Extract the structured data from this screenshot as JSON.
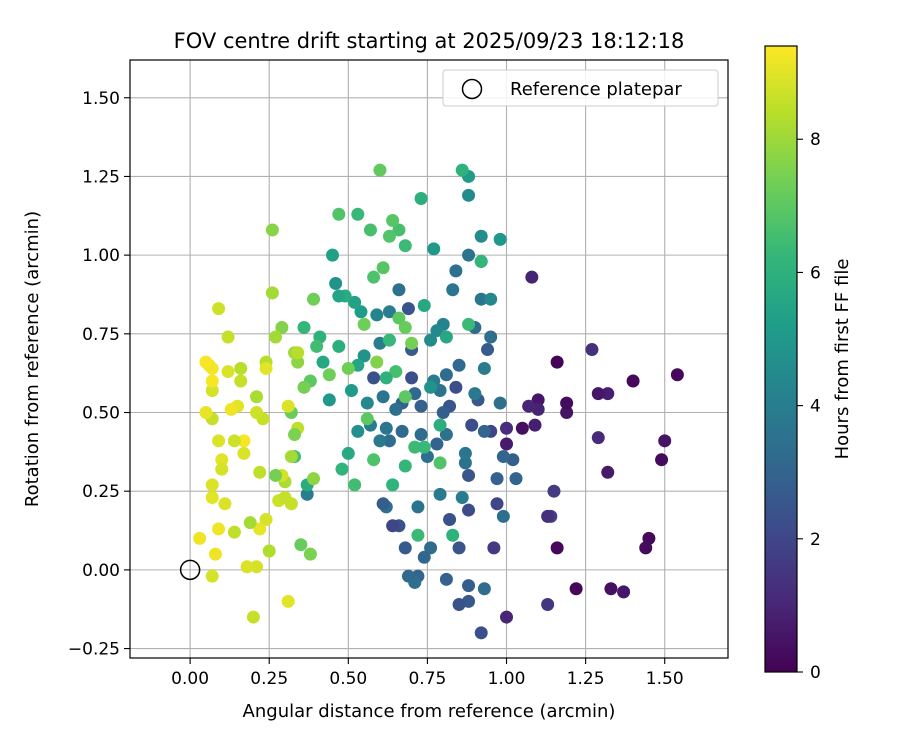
{
  "chart_data": {
    "type": "scatter",
    "title": "FOV centre drift starting at 2025/09/23 18:12:18",
    "xlabel": "Angular distance from reference (arcmin)",
    "ylabel": "Rotation from reference (arcmin)",
    "xlim": [
      -0.19,
      1.7
    ],
    "ylim": [
      -0.28,
      1.62
    ],
    "xticks": [
      "0.00",
      "0.25",
      "0.50",
      "0.75",
      "1.00",
      "1.25",
      "1.50"
    ],
    "yticks": [
      "−0.25",
      "0.00",
      "0.25",
      "0.50",
      "0.75",
      "1.00",
      "1.25",
      "1.50"
    ],
    "grid": true,
    "legend": {
      "position": "top-right",
      "label": "Reference platepar"
    },
    "reference_point": {
      "x": 0.0,
      "y": 0.0
    },
    "colorbar": {
      "label": "Hours from first FF file",
      "range": [
        0,
        9.4
      ],
      "ticks": [
        "0",
        "2",
        "4",
        "6",
        "8"
      ],
      "colormap": "viridis"
    },
    "points": [
      {
        "x": 1.54,
        "y": 0.62,
        "h": 0.2
      },
      {
        "x": 1.5,
        "y": 0.41,
        "h": 0.5
      },
      {
        "x": 1.49,
        "y": 0.35,
        "h": 0.3
      },
      {
        "x": 1.45,
        "y": 0.1,
        "h": 0.2
      },
      {
        "x": 1.44,
        "y": 0.07,
        "h": 0.3
      },
      {
        "x": 1.4,
        "y": 0.6,
        "h": 0.2
      },
      {
        "x": 1.37,
        "y": -0.07,
        "h": 0.6
      },
      {
        "x": 1.33,
        "y": -0.06,
        "h": 0.4
      },
      {
        "x": 1.32,
        "y": 0.56,
        "h": 0.8
      },
      {
        "x": 1.32,
        "y": 0.31,
        "h": 0.7
      },
      {
        "x": 1.29,
        "y": 0.56,
        "h": 0.6
      },
      {
        "x": 1.29,
        "y": 0.42,
        "h": 1.1
      },
      {
        "x": 1.27,
        "y": 0.7,
        "h": 1.3
      },
      {
        "x": 1.22,
        "y": -0.06,
        "h": 0.2
      },
      {
        "x": 1.19,
        "y": 0.5,
        "h": 0.5
      },
      {
        "x": 1.19,
        "y": 0.53,
        "h": 0.3
      },
      {
        "x": 1.16,
        "y": 0.66,
        "h": 0.1
      },
      {
        "x": 1.16,
        "y": 0.07,
        "h": 0.2
      },
      {
        "x": 1.15,
        "y": 0.25,
        "h": 1.6
      },
      {
        "x": 1.14,
        "y": 0.17,
        "h": 1.8
      },
      {
        "x": 1.13,
        "y": -0.11,
        "h": 1.5
      },
      {
        "x": 1.13,
        "y": 0.17,
        "h": 1.3
      },
      {
        "x": 1.1,
        "y": 0.54,
        "h": 0.6
      },
      {
        "x": 1.1,
        "y": 0.51,
        "h": 0.9
      },
      {
        "x": 1.09,
        "y": 0.46,
        "h": 0.8
      },
      {
        "x": 1.08,
        "y": 0.93,
        "h": 0.9
      },
      {
        "x": 1.07,
        "y": 0.52,
        "h": 1.0
      },
      {
        "x": 1.05,
        "y": 0.45,
        "h": 0.4
      },
      {
        "x": 1.03,
        "y": 0.29,
        "h": 3.0
      },
      {
        "x": 1.02,
        "y": 0.35,
        "h": 2.8
      },
      {
        "x": 1.0,
        "y": 0.4,
        "h": 0.7
      },
      {
        "x": 1.0,
        "y": -0.15,
        "h": 1.0
      },
      {
        "x": 1.0,
        "y": 0.45,
        "h": 1.2
      },
      {
        "x": 0.99,
        "y": 0.17,
        "h": 3.4
      },
      {
        "x": 0.99,
        "y": 0.36,
        "h": 3.0
      },
      {
        "x": 0.98,
        "y": 0.53,
        "h": 3.4
      },
      {
        "x": 0.98,
        "y": 1.05,
        "h": 5.0
      },
      {
        "x": 0.97,
        "y": 0.21,
        "h": 2.0
      },
      {
        "x": 0.96,
        "y": 0.07,
        "h": 1.6
      },
      {
        "x": 0.95,
        "y": 0.74,
        "h": 3.4
      },
      {
        "x": 0.95,
        "y": 0.44,
        "h": 1.9
      },
      {
        "x": 0.94,
        "y": 0.7,
        "h": 2.7
      },
      {
        "x": 0.93,
        "y": 0.44,
        "h": 3.0
      },
      {
        "x": 0.93,
        "y": -0.06,
        "h": 3.3
      },
      {
        "x": 0.92,
        "y": -0.2,
        "h": 2.3
      },
      {
        "x": 0.92,
        "y": 1.06,
        "h": 4.6
      },
      {
        "x": 0.92,
        "y": 0.98,
        "h": 4.0
      },
      {
        "x": 0.92,
        "y": 0.86,
        "h": 3.7
      },
      {
        "x": 0.91,
        "y": 0.54,
        "h": 2.6
      },
      {
        "x": 0.9,
        "y": 0.77,
        "h": 3.4
      },
      {
        "x": 0.89,
        "y": 0.46,
        "h": 2.2
      },
      {
        "x": 0.88,
        "y": 0.3,
        "h": 2.5
      },
      {
        "x": 0.88,
        "y": 0.19,
        "h": 2.2
      },
      {
        "x": 0.88,
        "y": -0.05,
        "h": 2.8
      },
      {
        "x": 0.88,
        "y": -0.1,
        "h": 2.6
      },
      {
        "x": 0.88,
        "y": 1.0,
        "h": 3.6
      },
      {
        "x": 0.88,
        "y": 1.25,
        "h": 5.1
      },
      {
        "x": 0.88,
        "y": 1.19,
        "h": 4.5
      },
      {
        "x": 0.87,
        "y": 0.34,
        "h": 3.5
      },
      {
        "x": 0.87,
        "y": 0.37,
        "h": 3.7
      },
      {
        "x": 0.86,
        "y": 0.23,
        "h": 3.9
      },
      {
        "x": 0.85,
        "y": -0.11,
        "h": 2.4
      },
      {
        "x": 0.85,
        "y": 0.07,
        "h": 2.5
      },
      {
        "x": 0.85,
        "y": 0.65,
        "h": 3.2
      },
      {
        "x": 0.84,
        "y": 0.58,
        "h": 2.3
      },
      {
        "x": 0.84,
        "y": 0.95,
        "h": 3.5
      },
      {
        "x": 0.83,
        "y": 0.89,
        "h": 3.7
      },
      {
        "x": 0.82,
        "y": 0.52,
        "h": 2.5
      },
      {
        "x": 0.82,
        "y": 0.16,
        "h": 2.4
      },
      {
        "x": 0.81,
        "y": 0.43,
        "h": 3.5
      },
      {
        "x": 0.81,
        "y": -0.03,
        "h": 2.9
      },
      {
        "x": 0.81,
        "y": 0.62,
        "h": 3.3
      },
      {
        "x": 0.8,
        "y": 0.5,
        "h": 2.8
      },
      {
        "x": 0.8,
        "y": 0.78,
        "h": 4.2
      },
      {
        "x": 0.79,
        "y": 0.57,
        "h": 3.6
      },
      {
        "x": 0.79,
        "y": 0.24,
        "h": 3.8
      },
      {
        "x": 0.78,
        "y": 0.4,
        "h": 3.0
      },
      {
        "x": 0.78,
        "y": 0.76,
        "h": 4.4
      },
      {
        "x": 0.77,
        "y": 1.02,
        "h": 5.0
      },
      {
        "x": 0.77,
        "y": 0.6,
        "h": 3.9
      },
      {
        "x": 0.76,
        "y": 0.73,
        "h": 4.5
      },
      {
        "x": 0.76,
        "y": 0.07,
        "h": 3.3
      },
      {
        "x": 0.75,
        "y": 0.36,
        "h": 3.4
      },
      {
        "x": 0.74,
        "y": 0.04,
        "h": 3.1
      },
      {
        "x": 0.73,
        "y": 0.43,
        "h": 3.3
      },
      {
        "x": 0.73,
        "y": 0.52,
        "h": 2.9
      },
      {
        "x": 0.72,
        "y": 0.2,
        "h": 3.6
      },
      {
        "x": 0.72,
        "y": -0.02,
        "h": 3.0
      },
      {
        "x": 0.71,
        "y": -0.04,
        "h": 3.4
      },
      {
        "x": 0.71,
        "y": 0.56,
        "h": 3.2
      },
      {
        "x": 0.7,
        "y": 0.7,
        "h": 2.7
      },
      {
        "x": 0.7,
        "y": 0.61,
        "h": 2.3
      },
      {
        "x": 0.69,
        "y": 0.83,
        "h": 2.5
      },
      {
        "x": 0.69,
        "y": -0.02,
        "h": 3.2
      },
      {
        "x": 0.68,
        "y": 0.07,
        "h": 2.7
      },
      {
        "x": 0.67,
        "y": 0.44,
        "h": 3.2
      },
      {
        "x": 0.67,
        "y": 0.53,
        "h": 2.9
      },
      {
        "x": 0.66,
        "y": 0.89,
        "h": 3.5
      },
      {
        "x": 0.66,
        "y": 0.14,
        "h": 2.4
      },
      {
        "x": 0.65,
        "y": 0.51,
        "h": 3.4
      },
      {
        "x": 0.64,
        "y": 0.14,
        "h": 2.0
      },
      {
        "x": 0.63,
        "y": 0.82,
        "h": 4.0
      },
      {
        "x": 0.63,
        "y": 0.41,
        "h": 3.3
      },
      {
        "x": 0.62,
        "y": 0.45,
        "h": 3.7
      },
      {
        "x": 0.62,
        "y": 0.2,
        "h": 3.5
      },
      {
        "x": 0.61,
        "y": 0.21,
        "h": 2.8
      },
      {
        "x": 0.61,
        "y": 0.55,
        "h": 3.7
      },
      {
        "x": 0.6,
        "y": 0.41,
        "h": 3.8
      },
      {
        "x": 0.6,
        "y": 0.72,
        "h": 4.0
      },
      {
        "x": 0.59,
        "y": 0.81,
        "h": 4.3
      },
      {
        "x": 0.58,
        "y": 0.61,
        "h": 2.4
      },
      {
        "x": 0.57,
        "y": 0.46,
        "h": 3.9
      },
      {
        "x": 0.56,
        "y": 0.53,
        "h": 4.4
      },
      {
        "x": 0.55,
        "y": 0.68,
        "h": 4.8
      },
      {
        "x": 0.54,
        "y": 0.82,
        "h": 5.2
      },
      {
        "x": 0.53,
        "y": 0.65,
        "h": 5.5
      },
      {
        "x": 0.53,
        "y": 0.44,
        "h": 4.7
      },
      {
        "x": 0.52,
        "y": 0.27,
        "h": 6.5
      },
      {
        "x": 0.52,
        "y": 0.85,
        "h": 5.4
      },
      {
        "x": 0.51,
        "y": 0.57,
        "h": 5.1
      },
      {
        "x": 0.5,
        "y": 0.37,
        "h": 5.7
      },
      {
        "x": 0.49,
        "y": 0.87,
        "h": 5.8
      },
      {
        "x": 0.48,
        "y": 0.32,
        "h": 6.1
      },
      {
        "x": 0.47,
        "y": 0.71,
        "h": 5.9
      },
      {
        "x": 0.47,
        "y": 0.87,
        "h": 5.5
      },
      {
        "x": 0.46,
        "y": 0.91,
        "h": 4.8
      },
      {
        "x": 0.45,
        "y": 1.0,
        "h": 5.3
      },
      {
        "x": 0.44,
        "y": 0.54,
        "h": 5.0
      },
      {
        "x": 0.42,
        "y": 0.66,
        "h": 5.6
      },
      {
        "x": 0.41,
        "y": 0.74,
        "h": 6.0
      },
      {
        "x": 0.4,
        "y": 0.71,
        "h": 6.5
      },
      {
        "x": 0.39,
        "y": 0.86,
        "h": 7.3
      },
      {
        "x": 0.38,
        "y": 0.6,
        "h": 7.0
      },
      {
        "x": 0.37,
        "y": 0.24,
        "h": 4.0
      },
      {
        "x": 0.37,
        "y": 0.27,
        "h": 5.8
      },
      {
        "x": 0.36,
        "y": 0.77,
        "h": 6.2
      },
      {
        "x": 0.36,
        "y": 0.58,
        "h": 7.4
      },
      {
        "x": 0.35,
        "y": 0.08,
        "h": 7.2
      },
      {
        "x": 0.34,
        "y": 0.45,
        "h": 8.5
      },
      {
        "x": 0.34,
        "y": 0.66,
        "h": 7.8
      },
      {
        "x": 0.33,
        "y": 0.43,
        "h": 7.5
      },
      {
        "x": 0.33,
        "y": 0.36,
        "h": 6.6
      },
      {
        "x": 0.32,
        "y": 0.5,
        "h": 7.2
      },
      {
        "x": 0.32,
        "y": 0.21,
        "h": 8.6
      },
      {
        "x": 0.31,
        "y": 0.52,
        "h": 8.9
      },
      {
        "x": 0.31,
        "y": -0.1,
        "h": 9.0
      },
      {
        "x": 0.3,
        "y": 0.28,
        "h": 8.2
      },
      {
        "x": 0.29,
        "y": 0.3,
        "h": 8.8
      },
      {
        "x": 0.29,
        "y": 0.77,
        "h": 7.6
      },
      {
        "x": 0.28,
        "y": 0.22,
        "h": 8.7
      },
      {
        "x": 0.27,
        "y": 0.74,
        "h": 8.1
      },
      {
        "x": 0.26,
        "y": 1.08,
        "h": 7.7
      },
      {
        "x": 0.25,
        "y": 0.06,
        "h": 8.3
      },
      {
        "x": 0.24,
        "y": 0.66,
        "h": 8.4
      },
      {
        "x": 0.24,
        "y": 0.16,
        "h": 8.8
      },
      {
        "x": 0.24,
        "y": 0.64,
        "h": 9.0
      },
      {
        "x": 0.23,
        "y": 0.48,
        "h": 8.6
      },
      {
        "x": 0.22,
        "y": 0.13,
        "h": 9.1
      },
      {
        "x": 0.22,
        "y": 0.31,
        "h": 8.5
      },
      {
        "x": 0.21,
        "y": 0.5,
        "h": 8.7
      },
      {
        "x": 0.21,
        "y": 0.55,
        "h": 8.2
      },
      {
        "x": 0.21,
        "y": 0.01,
        "h": 8.8
      },
      {
        "x": 0.2,
        "y": -0.15,
        "h": 8.6
      },
      {
        "x": 0.19,
        "y": 0.15,
        "h": 8.1
      },
      {
        "x": 0.18,
        "y": 0.01,
        "h": 8.9
      },
      {
        "x": 0.17,
        "y": 0.37,
        "h": 8.9
      },
      {
        "x": 0.17,
        "y": 0.41,
        "h": 9.3
      },
      {
        "x": 0.16,
        "y": 0.64,
        "h": 8.4
      },
      {
        "x": 0.16,
        "y": 0.6,
        "h": 8.6
      },
      {
        "x": 0.15,
        "y": 0.52,
        "h": 9.0
      },
      {
        "x": 0.14,
        "y": 0.41,
        "h": 8.7
      },
      {
        "x": 0.14,
        "y": 0.12,
        "h": 8.5
      },
      {
        "x": 0.13,
        "y": 0.51,
        "h": 9.2
      },
      {
        "x": 0.12,
        "y": 0.74,
        "h": 8.6
      },
      {
        "x": 0.12,
        "y": 0.63,
        "h": 8.9
      },
      {
        "x": 0.11,
        "y": 0.21,
        "h": 8.9
      },
      {
        "x": 0.1,
        "y": 0.35,
        "h": 9.0
      },
      {
        "x": 0.1,
        "y": 0.32,
        "h": 8.8
      },
      {
        "x": 0.09,
        "y": 0.13,
        "h": 9.2
      },
      {
        "x": 0.09,
        "y": 0.41,
        "h": 8.9
      },
      {
        "x": 0.09,
        "y": 0.83,
        "h": 8.7
      },
      {
        "x": 0.08,
        "y": 0.05,
        "h": 9.2
      },
      {
        "x": 0.07,
        "y": 0.48,
        "h": 8.6
      },
      {
        "x": 0.07,
        "y": -0.02,
        "h": 8.8
      },
      {
        "x": 0.07,
        "y": 0.23,
        "h": 9.0
      },
      {
        "x": 0.07,
        "y": 0.57,
        "h": 8.8
      },
      {
        "x": 0.07,
        "y": 0.27,
        "h": 8.9
      },
      {
        "x": 0.07,
        "y": 0.6,
        "h": 9.3
      },
      {
        "x": 0.07,
        "y": 0.64,
        "h": 9.3
      },
      {
        "x": 0.06,
        "y": 0.65,
        "h": 9.2
      },
      {
        "x": 0.05,
        "y": 0.66,
        "h": 9.3
      },
      {
        "x": 0.05,
        "y": 0.5,
        "h": 9.1
      },
      {
        "x": 0.03,
        "y": 0.1,
        "h": 9.2
      },
      {
        "x": 0.97,
        "y": 0.29,
        "h": 2.9
      },
      {
        "x": 0.95,
        "y": 0.86,
        "h": 4.4
      },
      {
        "x": 0.93,
        "y": 0.64,
        "h": 3.9
      },
      {
        "x": 0.9,
        "y": 0.56,
        "h": 3.8
      },
      {
        "x": 0.86,
        "y": 1.27,
        "h": 6.0
      },
      {
        "x": 0.76,
        "y": 0.58,
        "h": 4.8
      },
      {
        "x": 0.74,
        "y": 0.84,
        "h": 5.6
      },
      {
        "x": 0.73,
        "y": 1.18,
        "h": 5.9
      },
      {
        "x": 0.68,
        "y": 1.03,
        "h": 6.4
      },
      {
        "x": 0.66,
        "y": 1.08,
        "h": 6.6
      },
      {
        "x": 0.64,
        "y": 1.11,
        "h": 6.9
      },
      {
        "x": 0.6,
        "y": 1.27,
        "h": 7.1
      },
      {
        "x": 0.57,
        "y": 1.08,
        "h": 6.6
      },
      {
        "x": 0.53,
        "y": 1.13,
        "h": 6.3
      },
      {
        "x": 0.47,
        "y": 1.13,
        "h": 6.8
      },
      {
        "x": 0.58,
        "y": 0.93,
        "h": 6.7
      },
      {
        "x": 0.61,
        "y": 0.96,
        "h": 6.9
      },
      {
        "x": 0.63,
        "y": 0.73,
        "h": 6.3
      },
      {
        "x": 0.66,
        "y": 0.8,
        "h": 7.0
      },
      {
        "x": 0.68,
        "y": 0.77,
        "h": 7.2
      },
      {
        "x": 0.7,
        "y": 0.72,
        "h": 7.4
      },
      {
        "x": 0.56,
        "y": 0.48,
        "h": 7.0
      },
      {
        "x": 0.58,
        "y": 0.35,
        "h": 6.7
      },
      {
        "x": 0.64,
        "y": 0.27,
        "h": 6.1
      },
      {
        "x": 0.68,
        "y": 0.33,
        "h": 6.2
      },
      {
        "x": 0.71,
        "y": 0.39,
        "h": 6.4
      },
      {
        "x": 0.74,
        "y": 0.39,
        "h": 6.3
      },
      {
        "x": 0.79,
        "y": 0.34,
        "h": 6.8
      },
      {
        "x": 0.83,
        "y": 0.11,
        "h": 6.0
      },
      {
        "x": 0.72,
        "y": 0.11,
        "h": 6.4
      },
      {
        "x": 0.44,
        "y": 0.62,
        "h": 7.3
      },
      {
        "x": 0.55,
        "y": 0.78,
        "h": 7.3
      },
      {
        "x": 0.59,
        "y": 0.66,
        "h": 7.6
      },
      {
        "x": 0.68,
        "y": 0.55,
        "h": 7.0
      },
      {
        "x": 0.88,
        "y": 0.78,
        "h": 6.4
      },
      {
        "x": 0.65,
        "y": 0.63,
        "h": 6.6
      },
      {
        "x": 0.62,
        "y": 0.61,
        "h": 6.0
      },
      {
        "x": 0.92,
        "y": 0.98,
        "h": 6.2
      },
      {
        "x": 0.79,
        "y": 0.46,
        "h": 5.9
      },
      {
        "x": 0.81,
        "y": 0.74,
        "h": 5.6
      },
      {
        "x": 0.63,
        "y": 1.06,
        "h": 6.8
      },
      {
        "x": 0.5,
        "y": 0.64,
        "h": 7.3
      },
      {
        "x": 0.39,
        "y": 0.29,
        "h": 7.8
      },
      {
        "x": 0.38,
        "y": 0.05,
        "h": 7.5
      },
      {
        "x": 0.33,
        "y": 0.69,
        "h": 8.0
      },
      {
        "x": 0.32,
        "y": 0.36,
        "h": 8.1
      },
      {
        "x": 0.3,
        "y": 0.23,
        "h": 8.6
      },
      {
        "x": 0.34,
        "y": 0.69,
        "h": 8.4
      },
      {
        "x": 0.26,
        "y": 0.88,
        "h": 8.1
      },
      {
        "x": 0.27,
        "y": 0.3,
        "h": 7.4
      }
    ]
  }
}
